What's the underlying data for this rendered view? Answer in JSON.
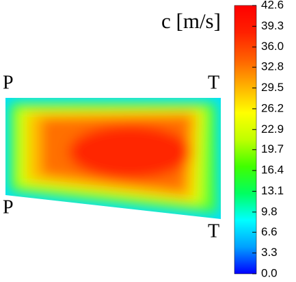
{
  "chart_data": {
    "type": "contour",
    "title": "c [m/s]",
    "annotations": [
      "P",
      "T",
      "P",
      "T"
    ],
    "colormap": [
      "#0000ff",
      "#00a0ff",
      "#00ffff",
      "#00ff60",
      "#40ff00",
      "#c0ff00",
      "#ffff00",
      "#ffb000",
      "#ff6000",
      "#ff2000",
      "#ff0000"
    ],
    "zlim": [
      0,
      42.6
    ],
    "zticks": [
      {
        "value": 0,
        "label": "0.0"
      },
      3.3,
      6.6,
      9.8,
      13.1,
      16.4,
      19.7,
      22.9,
      26.2,
      29.5,
      32.8,
      {
        "value": 36,
        "label": "36.0"
      },
      39.3,
      42.6
    ]
  }
}
